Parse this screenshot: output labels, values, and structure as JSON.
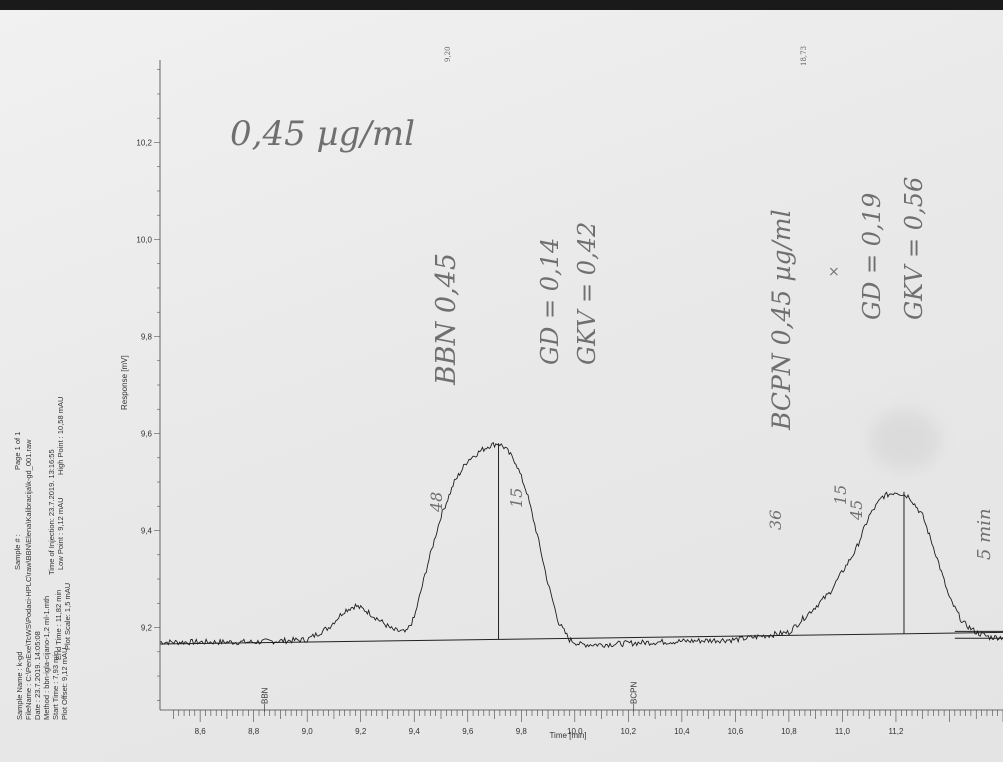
{
  "chart_data": {
    "type": "line",
    "xlabel": "Time [min]",
    "ylabel": "Response [mV]",
    "xlim": [
      8.45,
      11.6
    ],
    "ylim": [
      9.03,
      10.37
    ],
    "x_ticks": [
      "8,6",
      "8,8",
      "9,0",
      "9,2",
      "9,4",
      "9,6",
      "9,8",
      "10,0",
      "10,2",
      "10,4",
      "10,6",
      "10,8",
      "11,0",
      "11,2"
    ],
    "y_ticks": [
      "9,2",
      "9,4",
      "9,6",
      "9,8",
      "10,0",
      "10,2"
    ],
    "series": [
      {
        "x": [
          8.45,
          8.8,
          9.0,
          9.08,
          9.14,
          9.18,
          9.22,
          9.27,
          9.32,
          9.37,
          9.4,
          9.45,
          9.5,
          9.55,
          9.6,
          9.65,
          9.68,
          9.715,
          9.74,
          9.78,
          9.82,
          9.86,
          9.9,
          9.94,
          9.98,
          10.02,
          10.1,
          10.3,
          10.6,
          10.8,
          10.95,
          11.05,
          11.1,
          11.15,
          11.2,
          11.25,
          11.3,
          11.35,
          11.4,
          11.45,
          11.5,
          11.55,
          11.6
        ],
        "y": [
          9.17,
          9.17,
          9.175,
          9.2,
          9.235,
          9.245,
          9.235,
          9.215,
          9.195,
          9.19,
          9.22,
          9.33,
          9.43,
          9.5,
          9.545,
          9.565,
          9.575,
          9.58,
          9.57,
          9.54,
          9.48,
          9.39,
          9.29,
          9.21,
          9.175,
          9.165,
          9.165,
          9.17,
          9.175,
          9.19,
          9.27,
          9.36,
          9.43,
          9.47,
          9.48,
          9.47,
          9.43,
          9.35,
          9.26,
          9.21,
          9.19,
          9.18,
          9.18
        ]
      }
    ],
    "baseline": [
      {
        "x": [
          8.45,
          11.6
        ],
        "y": [
          9.166,
          9.19
        ]
      }
    ],
    "peak_markers": [
      {
        "label": "BBN",
        "x": 9.715,
        "y": 9.58
      },
      {
        "label": "BCPN",
        "x": 11.23,
        "y": 9.48
      }
    ],
    "top_annotations": [
      "9,20",
      "18,73"
    ],
    "handwritten": [
      "0,45 µg/ml",
      "BBN 0,45",
      "GD = 0,14",
      "GKV = 0,42",
      "BCPN 0,45 µg/ml",
      "×",
      "GD = 0,19",
      "GKV = 0,56",
      "48",
      "15",
      "36",
      "15",
      "45",
      "5 min"
    ]
  },
  "meta": {
    "sample_name": "Sample Name : k-gd",
    "sample_no": "Sample # :",
    "page": "Page 1 of 1",
    "filename": "FileName : C:\\PenExe\\TcWS\\Podaci-HPLC\\raw\\BBN\\Elena\\Kalibracija\\k-gd_001.raw",
    "date": "Date : 23.7.2019. 14:05:08",
    "method": "Method : bbn-igla-cijano-1,2 ml-1.mth",
    "injection": "Time of Injection: 23.7.2019. 13:16:55",
    "start_time": "Start Time : 7,93 min",
    "end_time": "End Time : 11,82 min",
    "low_point": "Low Point : 9,12 mAU",
    "high_point": "High Point : 10,58 mAU",
    "plot_offset": "Plot Offset: 9,12 mAU",
    "plot_scale": "Plot Scale: 1,5 mAU"
  }
}
